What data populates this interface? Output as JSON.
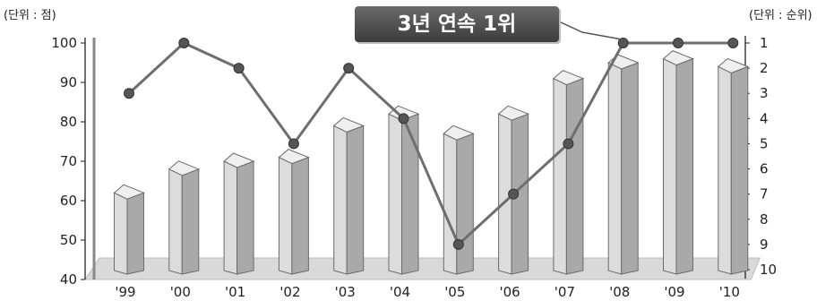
{
  "chart_data": {
    "type": "bar",
    "categories": [
      "'99",
      "'00",
      "'01",
      "'02",
      "'03",
      "'04",
      "'05",
      "'06",
      "'07",
      "'08",
      "'09",
      "'10"
    ],
    "series": [
      {
        "axis": "left",
        "mark": "bar",
        "values": [
          62,
          68,
          70,
          71,
          79,
          82,
          77,
          82,
          91,
          95,
          96,
          94
        ]
      },
      {
        "axis": "right",
        "mark": "line",
        "values": [
          3,
          1,
          2,
          5,
          2,
          4,
          9,
          7,
          5,
          1,
          1,
          1
        ]
      }
    ],
    "left_axis": {
      "unit_label": "(단위 : 점)",
      "min": 40,
      "max": 100,
      "ticks": [
        40,
        50,
        60,
        70,
        80,
        90,
        100
      ]
    },
    "right_axis": {
      "unit_label": "(단위 : 순위)",
      "min": 1,
      "max": 10,
      "inverted": true,
      "ticks": [
        1,
        2,
        3,
        4,
        5,
        6,
        7,
        8,
        9,
        10
      ]
    },
    "annotation": "3년 연속 1위",
    "grid": false,
    "colors": {
      "bar_front": "#dcdcdc",
      "bar_side": "#a9a9a9",
      "bar_top": "#efefef",
      "line": "#6e6e6e",
      "marker": "#555555",
      "callout_bg": "#4a4a4a"
    }
  }
}
